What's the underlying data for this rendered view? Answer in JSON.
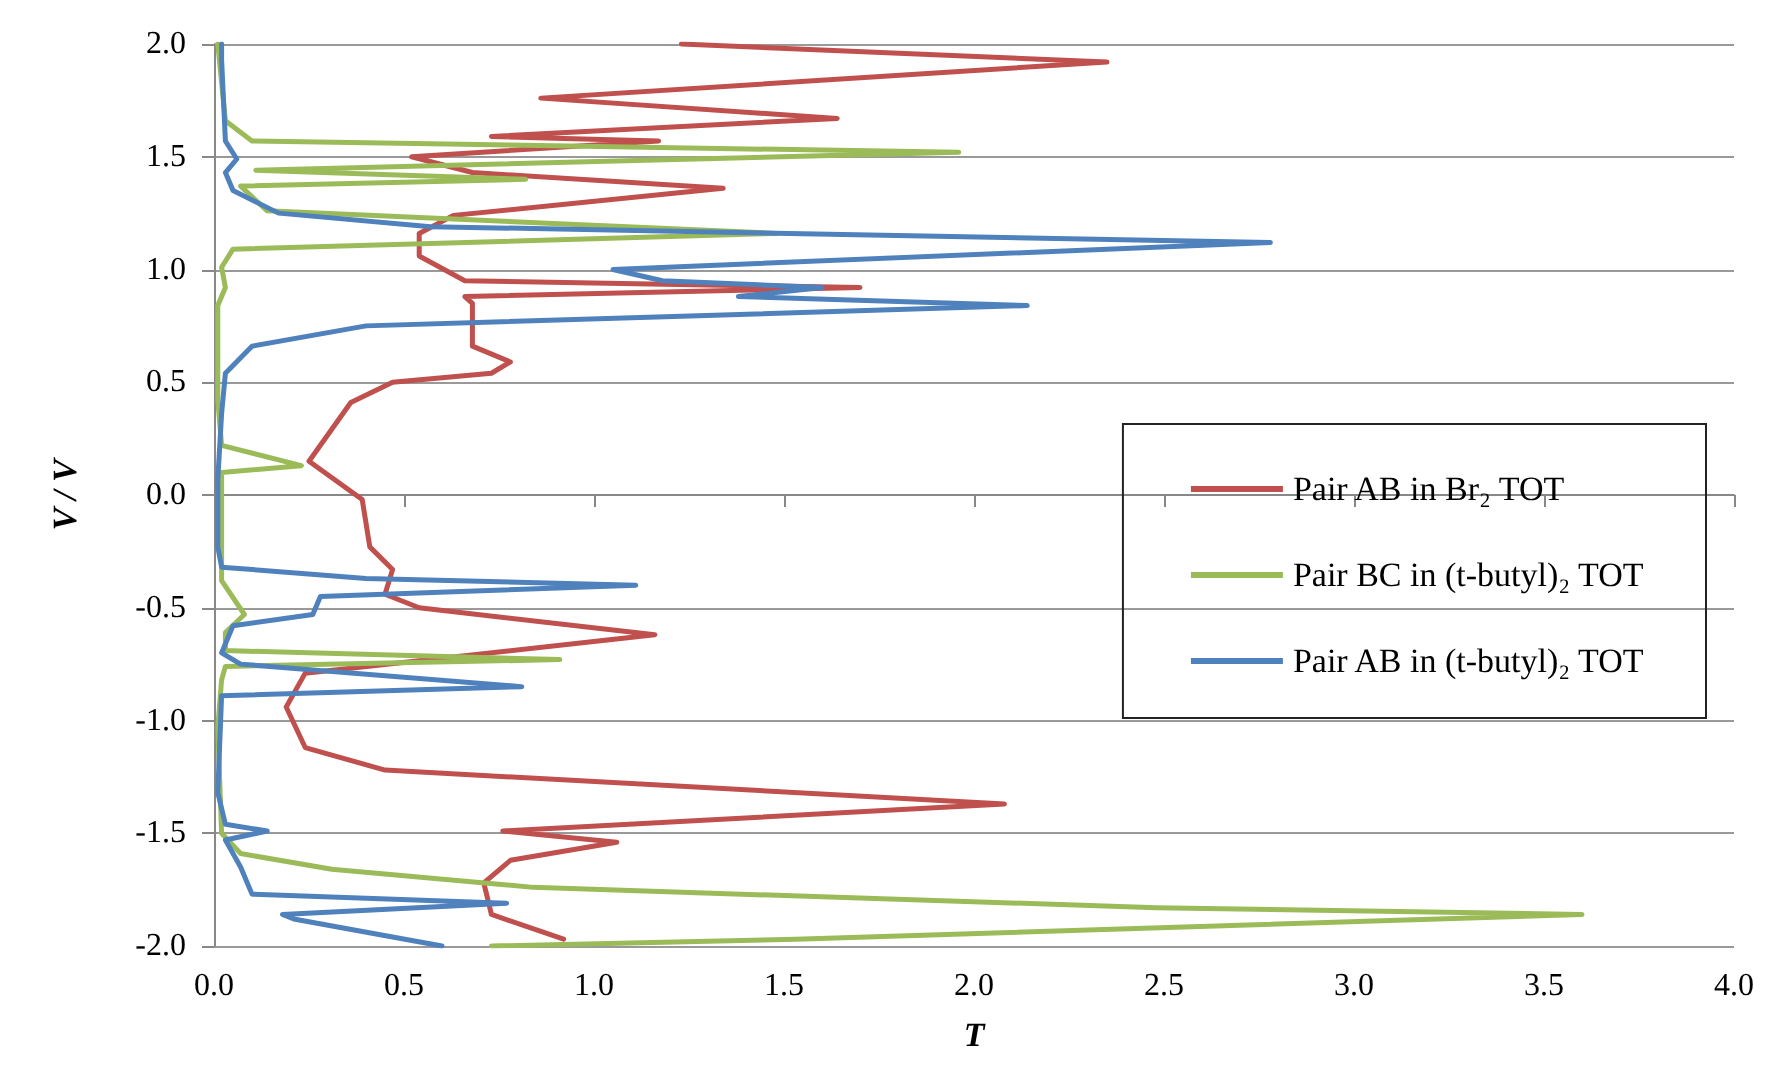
{
  "chart_data": {
    "type": "line",
    "xlabel": "T",
    "ylabel": "V / V",
    "xlim": [
      0,
      4
    ],
    "xticks": [
      {
        "value": 0,
        "label": "0.0"
      },
      {
        "value": 0.5,
        "label": "0.5"
      },
      {
        "value": 1,
        "label": "1.0"
      },
      {
        "value": 1.5,
        "label": "1.5"
      },
      {
        "value": 2,
        "label": "2.0"
      },
      {
        "value": 2.5,
        "label": "2.5"
      },
      {
        "value": 3,
        "label": "3.0"
      },
      {
        "value": 3.5,
        "label": "3.5"
      },
      {
        "value": 4,
        "label": "4.0"
      }
    ],
    "ylim": [
      -2,
      2
    ],
    "yticks": [
      {
        "value": -2,
        "label": "-2.0"
      },
      {
        "value": -1.5,
        "label": "-1.5"
      },
      {
        "value": -1,
        "label": "-1.0"
      },
      {
        "value": -0.5,
        "label": "-0.5"
      },
      {
        "value": 0,
        "label": "0.0"
      },
      {
        "value": 0.5,
        "label": "0.5"
      },
      {
        "value": 1,
        "label": "1.0"
      },
      {
        "value": 1.5,
        "label": "1.5"
      },
      {
        "value": 2,
        "label": "2.0"
      }
    ],
    "grid": "y",
    "legend": "right",
    "marker": "none",
    "line_style": "solid",
    "series": [
      {
        "name": "Pair AB in Br₂ TOT",
        "color": "#c0504d",
        "x": [
          1.23,
          2.35,
          0.86,
          1.64,
          0.73,
          1.17,
          0.52,
          0.68,
          1.34,
          0.63,
          0.54,
          0.54,
          0.66,
          1.7,
          0.66,
          0.68,
          0.68,
          0.78,
          0.73,
          0.47,
          0.36,
          0.25,
          0.39,
          0.41,
          0.47,
          0.45,
          0.54,
          1.16,
          0.24,
          0.19,
          0.24,
          0.45,
          2.08,
          0.76,
          1.06,
          0.78,
          0.71,
          0.73,
          0.92
        ],
        "values": [
          2.0,
          1.92,
          1.76,
          1.67,
          1.59,
          1.57,
          1.5,
          1.43,
          1.36,
          1.24,
          1.16,
          1.06,
          0.95,
          0.92,
          0.88,
          0.85,
          0.66,
          0.59,
          0.54,
          0.5,
          0.41,
          0.15,
          -0.02,
          -0.23,
          -0.33,
          -0.44,
          -0.5,
          -0.62,
          -0.79,
          -0.94,
          -1.12,
          -1.22,
          -1.37,
          -1.49,
          -1.54,
          -1.62,
          -1.72,
          -1.86,
          -1.97
        ]
      },
      {
        "name": "Pair BC in (t-butyl)₂ TOT",
        "color": "#9bbb59",
        "x": [
          0.01,
          0.03,
          0.1,
          1.96,
          0.11,
          0.82,
          0.07,
          0.14,
          1.48,
          0.05,
          0.02,
          0.03,
          0.01,
          0.01,
          0.02,
          0.23,
          0.02,
          0.02,
          0.02,
          0.08,
          0.03,
          0.03,
          0.91,
          0.03,
          0.02,
          0.01,
          0.02,
          0.07,
          0.31,
          0.84,
          2.48,
          3.6,
          1.53,
          0.73
        ],
        "values": [
          2.0,
          1.66,
          1.57,
          1.52,
          1.44,
          1.4,
          1.37,
          1.26,
          1.16,
          1.09,
          1.01,
          0.92,
          0.84,
          0.42,
          0.22,
          0.13,
          0.1,
          0.07,
          -0.38,
          -0.53,
          -0.61,
          -0.69,
          -0.73,
          -0.76,
          -0.82,
          -1.03,
          -1.5,
          -1.59,
          -1.66,
          -1.74,
          -1.83,
          -1.86,
          -1.97,
          -2.0
        ]
      },
      {
        "name": "Pair AB in (t-butyl)₂ TOT",
        "color": "#4f81bd",
        "x": [
          0.02,
          0.02,
          0.03,
          0.06,
          0.03,
          0.05,
          0.17,
          0.57,
          2.78,
          1.05,
          1.18,
          1.6,
          1.38,
          2.14,
          0.4,
          0.1,
          0.03,
          0.02,
          0.01,
          0.01,
          0.02,
          0.4,
          1.11,
          0.28,
          0.26,
          0.05,
          0.02,
          0.07,
          0.81,
          0.02,
          0.01,
          0.03,
          0.14,
          0.03,
          0.07,
          0.1,
          0.77,
          0.18,
          0.21,
          0.6
        ],
        "values": [
          2.0,
          1.93,
          1.57,
          1.49,
          1.43,
          1.35,
          1.25,
          1.19,
          1.12,
          1.0,
          0.95,
          0.92,
          0.88,
          0.84,
          0.75,
          0.66,
          0.54,
          0.36,
          0.07,
          -0.23,
          -0.32,
          -0.37,
          -0.4,
          -0.45,
          -0.53,
          -0.58,
          -0.7,
          -0.75,
          -0.85,
          -0.89,
          -1.32,
          -1.46,
          -1.49,
          -1.53,
          -1.65,
          -1.77,
          -1.81,
          -1.86,
          -1.88,
          -2.0
        ]
      }
    ]
  }
}
